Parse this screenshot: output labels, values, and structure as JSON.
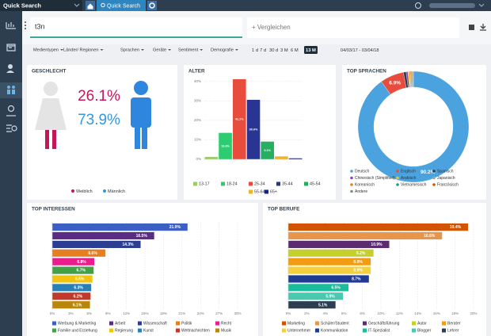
{
  "top_bar": {
    "app_title": "Quick Search",
    "tab": "Quick Search"
  },
  "search": {
    "query": "t3n",
    "compare": "+ Vergleichen"
  },
  "filters": [
    "Medientypen",
    "Länder/ Regionen",
    "Sprachen",
    "Geräte",
    "Sentiment",
    "Demografie"
  ],
  "periods": [
    "1 d",
    "7 d",
    "30 d",
    "3 M",
    "6 M",
    "13 M"
  ],
  "active_period": "13 M",
  "date_range": "04/03/17 - 03/04/18",
  "chart_data": [
    {
      "type": "gender",
      "title": "GESCHLECHT",
      "categories": [
        "Weiblich",
        "Männlich"
      ],
      "values": [
        26.1,
        73.9
      ],
      "value_labels": [
        "26.1%",
        "73.9%"
      ],
      "colors": [
        "#c2185b",
        "#3498db"
      ]
    },
    {
      "type": "bar",
      "title": "ALTER",
      "categories": [
        "13-17",
        "18-24",
        "25-34",
        "35-44",
        "45-54",
        "55-64",
        "65+"
      ],
      "values": [
        1.2,
        13.6,
        41.2,
        30.6,
        9.1,
        1.5,
        0.5
      ],
      "value_labels": [
        null,
        "13.6%",
        "41.2%",
        "30.6%",
        "9.1%",
        null,
        null
      ],
      "colors": [
        "#9ccc65",
        "#2ecc71",
        "#e74c3c",
        "#283593",
        "#27ae60",
        "#f0b429",
        "#1a237e"
      ],
      "ylim": [
        0,
        42
      ],
      "yticks": [
        {
          "value": 0,
          "label": "0%"
        },
        {
          "value": 10,
          "label": "10%"
        },
        {
          "value": 20,
          "label": "20%"
        },
        {
          "value": 30,
          "label": "30%"
        },
        {
          "value": 40,
          "label": "40%"
        }
      ],
      "grid": true
    },
    {
      "type": "donut",
      "title": "TOP SPRACHEN",
      "categories": [
        "Deutsch",
        "Englisch",
        "Spanisch",
        "Chinesisch (Simplified)",
        "Arabisch",
        "Japanisch",
        "Koreanisch",
        "Vietnamesisch",
        "Französisch",
        "Andere"
      ],
      "values": [
        90.2,
        6.9,
        0.8,
        0.5,
        0.4,
        0.3,
        0.3,
        0.2,
        0.2,
        0.2
      ],
      "value_labels": [
        "90.2%",
        "6.9%",
        null,
        null,
        null,
        null,
        null,
        null,
        null,
        null
      ],
      "colors": [
        "#4aa3df",
        "#e74c3c",
        "#2c3e50",
        "#8e44ad",
        "#f1c40f",
        "#95a5a6",
        "#e67e22",
        "#16a085",
        "#d35400",
        "#7f8c8d"
      ]
    },
    {
      "type": "hbar",
      "title": "TOP INTERESSEN",
      "categories": [
        "Werbung & Marketing",
        "Arbeit",
        "Wissenschaft",
        "Politik",
        "Recht",
        "Familie und Erziehung",
        "Regierung",
        "Kunst",
        "Weltnachrichten",
        "Musik"
      ],
      "values": [
        21.9,
        16.5,
        14.3,
        8.6,
        6.8,
        6.7,
        6.5,
        6.3,
        6.2,
        6.1
      ],
      "value_labels": [
        "21.9%",
        "16.5%",
        "14.3%",
        "8.6%",
        "6.8%",
        "6.7%",
        "6.5%",
        "6.3%",
        "6.2%",
        "6.1%"
      ],
      "colors": [
        "#3b5fc4",
        "#5b2c83",
        "#2c3e91",
        "#e67e22",
        "#e91e8c",
        "#43a047",
        "#f1c40f",
        "#2980b9",
        "#c0392b",
        "#b8860b"
      ],
      "xlim": [
        0,
        30
      ],
      "xticks": [
        {
          "value": 0,
          "label": "0%"
        },
        {
          "value": 3,
          "label": "3%"
        },
        {
          "value": 6,
          "label": "6%"
        },
        {
          "value": 9,
          "label": "9%"
        },
        {
          "value": 12,
          "label": "12%"
        },
        {
          "value": 15,
          "label": "15%"
        },
        {
          "value": 18,
          "label": "18%"
        },
        {
          "value": 21,
          "label": "21%"
        },
        {
          "value": 24,
          "label": "24%"
        },
        {
          "value": 27,
          "label": "27%"
        },
        {
          "value": 30,
          "label": "30%"
        }
      ],
      "grid": true
    },
    {
      "type": "hbar",
      "title": "TOP BERUFE",
      "categories": [
        "Marketing",
        "Schüler/Student",
        "Geschäftsführung",
        "Autor",
        "Berater",
        "Unternehmer",
        "Kommunikation",
        "IT-Spezialist",
        "Blogger",
        "Lehrer"
      ],
      "values": [
        19.4,
        16.6,
        10.9,
        9.2,
        8.9,
        8.9,
        8.7,
        6.5,
        5.9,
        5.1
      ],
      "value_labels": [
        "19.4%",
        "16.6%",
        "10.9%",
        "9.2%",
        "8.9%",
        "8.9%",
        "8.7%",
        "6.5%",
        "5.9%",
        "5.1%"
      ],
      "colors": [
        "#d35400",
        "#e8954a",
        "#5b2c6f",
        "#c5d12a",
        "#f39c12",
        "#f4d03f",
        "#1f3a93",
        "#1abc9c",
        "#48c9b0",
        "#2c3e50"
      ],
      "xlim": [
        0,
        20
      ],
      "xticks": [
        {
          "value": 0,
          "label": "0%"
        },
        {
          "value": 2,
          "label": "2%"
        },
        {
          "value": 4,
          "label": "4%"
        },
        {
          "value": 6,
          "label": "6%"
        },
        {
          "value": 8,
          "label": "8%"
        },
        {
          "value": 10,
          "label": "10%"
        },
        {
          "value": 12,
          "label": "12%"
        },
        {
          "value": 14,
          "label": "14%"
        },
        {
          "value": 16,
          "label": "16%"
        },
        {
          "value": 18,
          "label": "18%"
        },
        {
          "value": 20,
          "label": "20%"
        }
      ],
      "grid": true
    }
  ]
}
